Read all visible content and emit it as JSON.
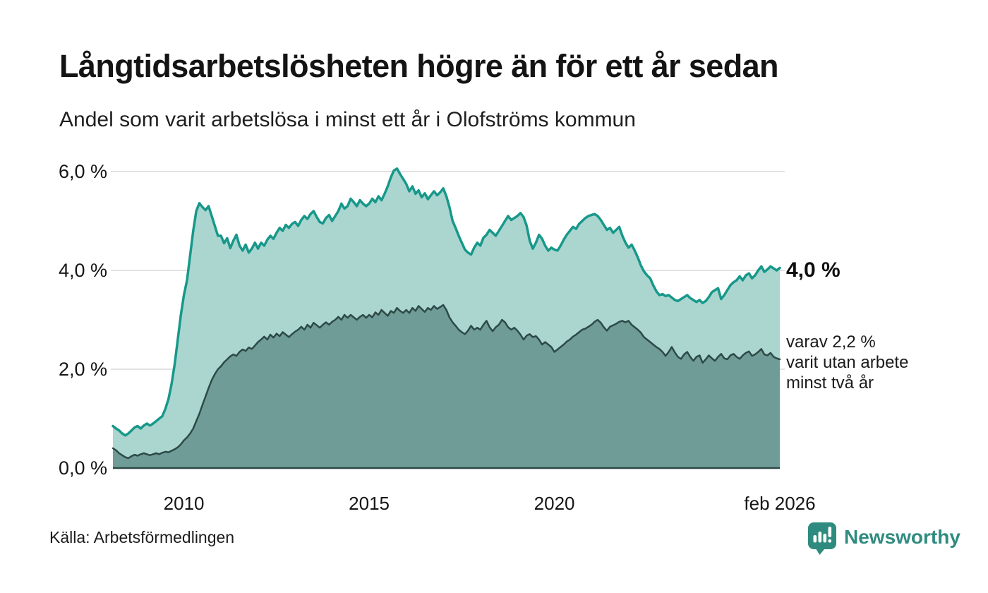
{
  "header": {
    "title": "Långtidsarbetslösheten högre än för ett år sedan",
    "subtitle": "Andel som varit arbetslösa i minst ett år i Olofströms kommun"
  },
  "annotations": {
    "primary": "4,0 %",
    "secondary_lines": [
      "varav 2,2 %",
      "varit utan arbete",
      "minst två år"
    ]
  },
  "source": {
    "label": "Källa: Arbetsförmedlingen"
  },
  "branding": {
    "name": "Newsworthy",
    "color": "#2f8b80"
  },
  "chart_data": {
    "type": "area",
    "title": "Långtidsarbetslösheten högre än för ett år sedan",
    "subtitle": "Andel som varit arbetslösa i minst ett år i Olofströms kommun",
    "unit": "%",
    "x_start_year": 2008.083,
    "x_end_year": 2026.083,
    "ylim": [
      0,
      6.3
    ],
    "grid": true,
    "gridline_values": [
      2,
      4,
      6
    ],
    "y_ticks": [
      {
        "value": 0,
        "label": "0,0 %"
      },
      {
        "value": 2,
        "label": "2,0 %"
      },
      {
        "value": 4,
        "label": "4,0 %"
      },
      {
        "value": 6,
        "label": "6,0 %"
      }
    ],
    "x_ticks": [
      {
        "value": 2010,
        "label": "2010"
      },
      {
        "value": 2015,
        "label": "2015"
      },
      {
        "value": 2020,
        "label": "2020"
      },
      {
        "value": 2026.083,
        "label": "feb 2026"
      }
    ],
    "colors": {
      "grid": "#d8d8d8",
      "axis": "#2d4a46",
      "long_term_line": "#17988a",
      "long_term_fill": "#abd6d0",
      "very_long_term_line": "#2d4a46",
      "very_long_term_fill": "#6f9c97"
    },
    "series": [
      {
        "name": "Arbetslösa minst ett år",
        "end_value_label": "4,0 %",
        "values": [
          0.85,
          0.8,
          0.76,
          0.7,
          0.66,
          0.7,
          0.76,
          0.82,
          0.85,
          0.8,
          0.86,
          0.9,
          0.86,
          0.9,
          0.95,
          1.0,
          1.05,
          1.2,
          1.4,
          1.7,
          2.1,
          2.6,
          3.1,
          3.5,
          3.8,
          4.3,
          4.8,
          5.2,
          5.36,
          5.28,
          5.22,
          5.3,
          5.1,
          4.9,
          4.7,
          4.7,
          4.55,
          4.65,
          4.45,
          4.6,
          4.72,
          4.5,
          4.4,
          4.52,
          4.36,
          4.44,
          4.56,
          4.44,
          4.56,
          4.5,
          4.62,
          4.7,
          4.64,
          4.76,
          4.86,
          4.8,
          4.92,
          4.86,
          4.94,
          4.98,
          4.9,
          5.02,
          5.1,
          5.04,
          5.14,
          5.2,
          5.08,
          4.98,
          4.95,
          5.06,
          5.12,
          5.0,
          5.1,
          5.2,
          5.35,
          5.25,
          5.3,
          5.45,
          5.38,
          5.3,
          5.42,
          5.35,
          5.3,
          5.35,
          5.45,
          5.38,
          5.5,
          5.42,
          5.55,
          5.7,
          5.88,
          6.02,
          6.06,
          5.95,
          5.85,
          5.75,
          5.6,
          5.7,
          5.55,
          5.62,
          5.48,
          5.56,
          5.44,
          5.52,
          5.6,
          5.52,
          5.58,
          5.66,
          5.5,
          5.28,
          5.0,
          4.86,
          4.7,
          4.56,
          4.42,
          4.36,
          4.32,
          4.46,
          4.56,
          4.5,
          4.66,
          4.72,
          4.82,
          4.76,
          4.7,
          4.8,
          4.9,
          5.0,
          5.1,
          5.02,
          5.06,
          5.1,
          5.16,
          5.08,
          4.9,
          4.6,
          4.44,
          4.56,
          4.72,
          4.64,
          4.5,
          4.4,
          4.46,
          4.42,
          4.4,
          4.5,
          4.62,
          4.72,
          4.8,
          4.88,
          4.84,
          4.94,
          5.0,
          5.06,
          5.1,
          5.12,
          5.14,
          5.1,
          5.02,
          4.92,
          4.82,
          4.86,
          4.76,
          4.82,
          4.88,
          4.7,
          4.56,
          4.46,
          4.52,
          4.4,
          4.26,
          4.1,
          3.98,
          3.9,
          3.84,
          3.7,
          3.58,
          3.5,
          3.52,
          3.48,
          3.5,
          3.45,
          3.4,
          3.38,
          3.42,
          3.46,
          3.5,
          3.44,
          3.4,
          3.36,
          3.4,
          3.34,
          3.38,
          3.46,
          3.56,
          3.6,
          3.64,
          3.42,
          3.5,
          3.6,
          3.7,
          3.76,
          3.8,
          3.88,
          3.8,
          3.9,
          3.94,
          3.84,
          3.9,
          4.0,
          4.08,
          3.97,
          4.02,
          4.08,
          4.04,
          4.0,
          4.05
        ]
      },
      {
        "name": "Varav utan arbete minst två år",
        "end_value_label": "2,2 %",
        "values": [
          0.4,
          0.36,
          0.3,
          0.26,
          0.22,
          0.2,
          0.24,
          0.27,
          0.25,
          0.28,
          0.3,
          0.28,
          0.26,
          0.28,
          0.3,
          0.28,
          0.31,
          0.33,
          0.32,
          0.35,
          0.38,
          0.42,
          0.48,
          0.56,
          0.62,
          0.7,
          0.8,
          0.95,
          1.1,
          1.28,
          1.45,
          1.62,
          1.78,
          1.9,
          2.0,
          2.06,
          2.14,
          2.2,
          2.26,
          2.3,
          2.27,
          2.35,
          2.4,
          2.37,
          2.44,
          2.41,
          2.48,
          2.55,
          2.6,
          2.66,
          2.6,
          2.7,
          2.64,
          2.72,
          2.67,
          2.75,
          2.7,
          2.65,
          2.71,
          2.76,
          2.8,
          2.86,
          2.8,
          2.9,
          2.84,
          2.94,
          2.89,
          2.84,
          2.9,
          2.95,
          2.9,
          2.96,
          3.0,
          3.06,
          3.0,
          3.1,
          3.04,
          3.1,
          3.05,
          3.0,
          3.06,
          3.1,
          3.04,
          3.1,
          3.05,
          3.15,
          3.1,
          3.2,
          3.14,
          3.08,
          3.18,
          3.14,
          3.24,
          3.18,
          3.14,
          3.2,
          3.14,
          3.24,
          3.18,
          3.28,
          3.22,
          3.16,
          3.24,
          3.2,
          3.28,
          3.22,
          3.26,
          3.3,
          3.2,
          3.05,
          2.95,
          2.88,
          2.8,
          2.75,
          2.71,
          2.78,
          2.88,
          2.8,
          2.84,
          2.8,
          2.9,
          2.98,
          2.85,
          2.77,
          2.85,
          2.9,
          3.0,
          2.95,
          2.85,
          2.8,
          2.84,
          2.78,
          2.7,
          2.6,
          2.68,
          2.71,
          2.65,
          2.67,
          2.6,
          2.5,
          2.55,
          2.5,
          2.45,
          2.35,
          2.4,
          2.45,
          2.5,
          2.56,
          2.6,
          2.66,
          2.7,
          2.75,
          2.8,
          2.82,
          2.86,
          2.9,
          2.96,
          3.0,
          2.94,
          2.85,
          2.78,
          2.86,
          2.89,
          2.92,
          2.96,
          2.98,
          2.95,
          2.98,
          2.9,
          2.85,
          2.8,
          2.74,
          2.65,
          2.6,
          2.55,
          2.5,
          2.45,
          2.41,
          2.35,
          2.27,
          2.35,
          2.45,
          2.34,
          2.25,
          2.21,
          2.3,
          2.35,
          2.25,
          2.17,
          2.25,
          2.28,
          2.13,
          2.2,
          2.28,
          2.22,
          2.17,
          2.25,
          2.31,
          2.22,
          2.2,
          2.28,
          2.31,
          2.25,
          2.21,
          2.28,
          2.33,
          2.36,
          2.27,
          2.3,
          2.35,
          2.41,
          2.3,
          2.28,
          2.33,
          2.25,
          2.22,
          2.2
        ]
      }
    ]
  }
}
